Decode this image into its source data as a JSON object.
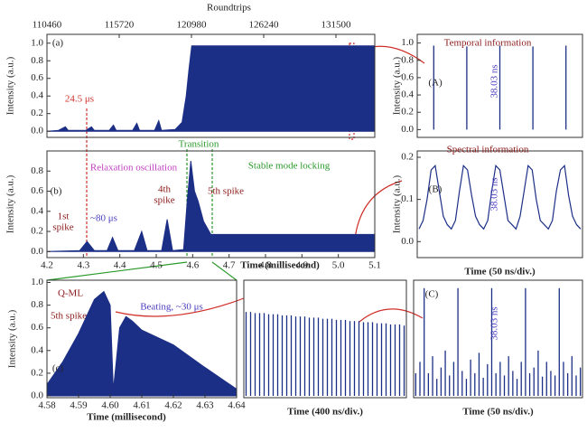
{
  "chart_data": [
    {
      "type": "area",
      "panel": "(a)",
      "ylabel": "Intensity (a.u.)",
      "x2label": "Roundtrips",
      "color": "#1c2f86",
      "xlim": [
        110460,
        134330
      ],
      "x2ticks": [
        110460,
        115720,
        120980,
        126240,
        131500
      ],
      "ylim": [
        -0.07,
        1.1
      ],
      "yticks": [
        {
          "value": 0,
          "label": "0.0"
        },
        {
          "value": 0.2,
          "label": "0.2"
        },
        {
          "value": 0.4,
          "label": "0.4"
        },
        {
          "value": 0.6,
          "label": "0.6"
        },
        {
          "value": 0.8,
          "label": "0.8"
        },
        {
          "value": 1,
          "label": "1.0"
        }
      ],
      "x": [
        110460,
        111300,
        111800,
        112000,
        113300,
        113700,
        113900,
        115000,
        115300,
        115500,
        116700,
        117000,
        117200,
        118300,
        118600,
        118800,
        119800,
        120300,
        120600,
        120800,
        121000,
        134330,
        134330
      ],
      "values": [
        0,
        0.01,
        0.05,
        0.01,
        0.01,
        0.05,
        0.01,
        0.01,
        0.07,
        0.01,
        0.01,
        0.09,
        0.01,
        0.01,
        0.12,
        0.01,
        0.02,
        0.1,
        0.4,
        0.7,
        0.97,
        0.97,
        0
      ],
      "annotations": [
        "24.5 μs"
      ]
    },
    {
      "type": "area",
      "panel": "(b)",
      "ylabel": "Intensity (a.u.)",
      "xlabel": "Time (millisecond)",
      "color": "#1c2f86",
      "xlim": [
        4.2,
        5.1
      ],
      "xticks": [
        4.2,
        4.3,
        4.4,
        4.5,
        4.6,
        4.7,
        4.8,
        4.9,
        {
          "value": 5,
          "label": "5.0"
        },
        5.1
      ],
      "ylim": [
        -0.06,
        1.0
      ],
      "yticks": [
        {
          "value": 0,
          "label": "0.0"
        },
        {
          "value": 0.2,
          "label": "0.2"
        },
        {
          "value": 0.4,
          "label": "0.4"
        },
        {
          "value": 0.6,
          "label": "0.6"
        },
        {
          "value": 0.8,
          "label": "0.8"
        }
      ],
      "x": [
        4.2,
        4.29,
        4.31,
        4.33,
        4.365,
        4.38,
        4.395,
        4.44,
        4.46,
        4.475,
        4.515,
        4.53,
        4.545,
        4.575,
        4.585,
        4.595,
        4.6,
        4.605,
        4.615,
        4.63,
        4.65,
        5.1,
        5.1
      ],
      "values": [
        0,
        0.01,
        0.1,
        0.01,
        0.01,
        0.14,
        0.01,
        0.01,
        0.2,
        0.01,
        0.01,
        0.32,
        0.01,
        0.02,
        0.5,
        0.9,
        0.75,
        0.6,
        0.5,
        0.3,
        0.17,
        0.17,
        0
      ],
      "annotations": [
        "Relaxation oscillation",
        "Transition",
        "Stable mode locking",
        "1st",
        "spike",
        "~80 μs",
        "4th",
        "spike",
        "5th spike"
      ]
    },
    {
      "type": "pulse",
      "panel": "(A)",
      "ylabel": "Intensity (a.u.)",
      "color": "#1c2f86",
      "ylim": [
        -0.09,
        1.1
      ],
      "yticks": [
        {
          "value": 0,
          "label": "0.0"
        },
        {
          "value": 0.2,
          "label": "0.2"
        },
        {
          "value": 0.4,
          "label": "0.4"
        },
        {
          "value": 0.6,
          "label": "0.6"
        },
        {
          "value": 0.8,
          "label": "0.8"
        },
        {
          "value": 1,
          "label": "1.0"
        }
      ],
      "values": [
        0.97,
        0.96,
        0.97,
        0.96,
        0.97
      ],
      "annotations": [
        "Temporal information",
        "38.03 ns"
      ]
    },
    {
      "type": "wave",
      "panel": "(B)",
      "ylabel": "Intensity (a.u.)",
      "xlabel": "Time (50 ns/div.)",
      "color": "#1c2f86",
      "ylim": [
        -0.038,
        0.215
      ],
      "yticks": [
        {
          "value": 0,
          "label": "0.0"
        },
        {
          "value": 0.1,
          "label": "0.1"
        },
        {
          "value": 0.2,
          "label": "0.2"
        }
      ],
      "values": [
        0.03,
        0.05,
        0.1,
        0.17,
        0.18,
        0.12,
        0.06,
        0.04,
        0.03,
        0.05,
        0.12,
        0.18,
        0.17,
        0.11,
        0.06,
        0.04,
        0.03,
        0.05,
        0.12,
        0.18,
        0.17,
        0.11,
        0.05,
        0.04,
        0.03,
        0.06,
        0.12,
        0.18,
        0.17,
        0.1,
        0.05,
        0.04,
        0.03,
        0.05,
        0.12,
        0.17,
        0.18,
        0.11,
        0.06,
        0.04,
        0.03
      ],
      "annotations": [
        "Spectral information",
        "38.03 ns"
      ]
    },
    {
      "type": "area",
      "panel": "(c)",
      "ylabel": "Intensity (a.u.)",
      "xlabel": "Time (millisecond)",
      "color": "#1c2f86",
      "xlim": [
        4.58,
        4.64
      ],
      "xticks": [
        4.58,
        4.59,
        {
          "value": 4.6,
          "label": "4.60"
        },
        4.61,
        4.62,
        4.63,
        4.64
      ],
      "ylim": [
        -0.016,
        1.02
      ],
      "yticks": [
        {
          "value": 0,
          "label": "0.0"
        },
        {
          "value": 0.2,
          "label": "0.2"
        },
        {
          "value": 0.4,
          "label": "0.4"
        },
        {
          "value": 0.6,
          "label": "0.6"
        },
        {
          "value": 0.8,
          "label": "0.8"
        },
        {
          "value": 1,
          "label": "1.0"
        }
      ],
      "x": [
        4.58,
        4.58,
        4.585,
        4.59,
        4.595,
        4.598,
        4.6,
        4.601,
        4.603,
        4.605,
        4.607,
        4.61,
        4.62,
        4.63,
        4.64,
        4.64
      ],
      "values": [
        0,
        0.1,
        0.3,
        0.55,
        0.85,
        0.92,
        0.8,
        0.05,
        0.6,
        0.7,
        0.66,
        0.58,
        0.45,
        0.25,
        0.06,
        0
      ],
      "annotations": [
        "Q-ML",
        "Beating, ~30 μs",
        "5th spike"
      ]
    },
    {
      "type": "pulse",
      "xlabel": "Time (400 ns/div.)",
      "color": "#1c2f86",
      "ylim": [
        -0.016,
        1.02
      ],
      "values": [
        0.74,
        0.74,
        0.73,
        0.73,
        0.73,
        0.72,
        0.72,
        0.72,
        0.71,
        0.71,
        0.71,
        0.7,
        0.7,
        0.7,
        0.69,
        0.69,
        0.69,
        0.68,
        0.68,
        0.68,
        0.67,
        0.67,
        0.67,
        0.66,
        0.66,
        0.66,
        0.65,
        0.65,
        0.65,
        0.64,
        0.64,
        0.64,
        0.63,
        0.63,
        0.63,
        0.62
      ]
    },
    {
      "type": "pulse",
      "panel": "(C)",
      "xlabel": "Time (50 ns/div.)",
      "color": "#1c2f86",
      "ylim": [
        -0.016,
        1.02
      ],
      "values": [
        0.2,
        0.3,
        0.95,
        0.2,
        0.35,
        0.15,
        0.25,
        0.4,
        0.18,
        0.3,
        0.95,
        0.22,
        0.15,
        0.32,
        0.2,
        0.38,
        0.16,
        0.28,
        0.95,
        0.2,
        0.3,
        0.18,
        0.35,
        0.22,
        0.15,
        0.3,
        0.95,
        0.2,
        0.25,
        0.4,
        0.17,
        0.3,
        0.22,
        0.18,
        0.95,
        0.3,
        0.2,
        0.35,
        0.18,
        0.25
      ],
      "annotations": [
        "38.03 ns"
      ]
    }
  ]
}
